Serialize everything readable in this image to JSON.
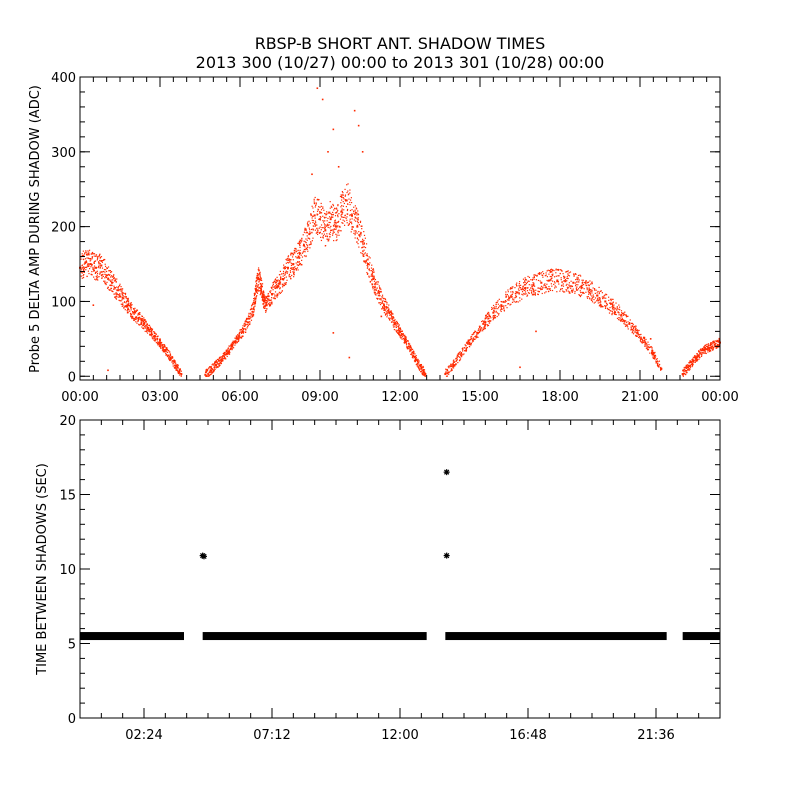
{
  "header": {
    "title": "RBSP-B SHORT ANT. SHADOW TIMES",
    "subtitle": "2013 300 (10/27) 00:00 to 2013 301 (10/28) 00:00"
  },
  "colors": {
    "top_points": "#ff2a00",
    "bottom_points": "#000000",
    "axis": "#000000"
  },
  "chart_data": [
    {
      "type": "scatter",
      "ylabel": "Probe 5 DELTA AMP DURING SHADOW (ADC)",
      "xlabel": "",
      "x_unit": "hours since 00:00",
      "xlim": [
        0,
        24
      ],
      "ylim": [
        -5,
        400
      ],
      "x_ticks": [
        {
          "value": 0,
          "label": "00:00"
        },
        {
          "value": 3,
          "label": "03:00"
        },
        {
          "value": 6,
          "label": "06:00"
        },
        {
          "value": 9,
          "label": "09:00"
        },
        {
          "value": 12,
          "label": "12:00"
        },
        {
          "value": 15,
          "label": "15:00"
        },
        {
          "value": 18,
          "label": "18:00"
        },
        {
          "value": 21,
          "label": "21:00"
        },
        {
          "value": 24,
          "label": "00:00"
        }
      ],
      "y_ticks": [
        {
          "value": 0,
          "label": "0"
        },
        {
          "value": 100,
          "label": "100"
        },
        {
          "value": 200,
          "label": "200"
        },
        {
          "value": 300,
          "label": "300"
        },
        {
          "value": 400,
          "label": "400"
        }
      ],
      "series": [
        {
          "color": "#ff2a00",
          "points": [
            [
              0.0,
              145
            ],
            [
              0.2,
              152
            ],
            [
              0.4,
              150
            ],
            [
              0.6,
              145
            ],
            [
              0.8,
              148
            ],
            [
              1.0,
              135
            ],
            [
              1.2,
              125
            ],
            [
              1.4,
              115
            ],
            [
              1.6,
              105
            ],
            [
              1.8,
              95
            ],
            [
              2.0,
              85
            ],
            [
              2.2,
              78
            ],
            [
              2.4,
              70
            ],
            [
              2.6,
              62
            ],
            [
              2.8,
              53
            ],
            [
              3.0,
              45
            ],
            [
              3.2,
              35
            ],
            [
              3.4,
              25
            ],
            [
              3.6,
              14
            ],
            [
              3.8,
              3
            ],
            [
              4.7,
              2
            ],
            [
              4.9,
              8
            ],
            [
              5.1,
              15
            ],
            [
              5.3,
              22
            ],
            [
              5.5,
              30
            ],
            [
              5.7,
              40
            ],
            [
              5.9,
              50
            ],
            [
              6.1,
              60
            ],
            [
              6.3,
              72
            ],
            [
              6.5,
              90
            ],
            [
              6.6,
              115
            ],
            [
              6.7,
              130
            ],
            [
              6.8,
              120
            ],
            [
              6.9,
              100
            ],
            [
              7.0,
              95
            ],
            [
              7.2,
              110
            ],
            [
              7.4,
              120
            ],
            [
              7.6,
              130
            ],
            [
              7.8,
              145
            ],
            [
              8.0,
              150
            ],
            [
              8.2,
              160
            ],
            [
              8.4,
              175
            ],
            [
              8.6,
              190
            ],
            [
              8.8,
              215
            ],
            [
              9.0,
              210
            ],
            [
              9.2,
              195
            ],
            [
              9.4,
              210
            ],
            [
              9.6,
              200
            ],
            [
              9.8,
              220
            ],
            [
              10.0,
              235
            ],
            [
              10.2,
              215
            ],
            [
              10.4,
              200
            ],
            [
              10.6,
              180
            ],
            [
              10.8,
              150
            ],
            [
              11.0,
              130
            ],
            [
              11.2,
              112
            ],
            [
              11.4,
              95
            ],
            [
              11.6,
              85
            ],
            [
              11.8,
              70
            ],
            [
              12.0,
              60
            ],
            [
              12.2,
              48
            ],
            [
              12.4,
              35
            ],
            [
              12.6,
              22
            ],
            [
              12.8,
              10
            ],
            [
              12.95,
              3
            ],
            [
              13.7,
              3
            ],
            [
              14.0,
              15
            ],
            [
              14.3,
              30
            ],
            [
              14.6,
              45
            ],
            [
              14.9,
              58
            ],
            [
              15.2,
              72
            ],
            [
              15.5,
              85
            ],
            [
              15.8,
              95
            ],
            [
              16.1,
              105
            ],
            [
              16.4,
              112
            ],
            [
              16.7,
              118
            ],
            [
              17.0,
              122
            ],
            [
              17.3,
              125
            ],
            [
              17.6,
              128
            ],
            [
              17.9,
              128
            ],
            [
              18.2,
              127
            ],
            [
              18.5,
              125
            ],
            [
              18.8,
              120
            ],
            [
              19.1,
              115
            ],
            [
              19.4,
              108
            ],
            [
              19.7,
              100
            ],
            [
              20.0,
              92
            ],
            [
              20.3,
              82
            ],
            [
              20.6,
              70
            ],
            [
              20.9,
              58
            ],
            [
              21.2,
              45
            ],
            [
              21.5,
              30
            ],
            [
              21.8,
              10
            ],
            [
              22.6,
              3
            ],
            [
              22.8,
              12
            ],
            [
              23.0,
              20
            ],
            [
              23.2,
              28
            ],
            [
              23.4,
              35
            ],
            [
              23.6,
              38
            ],
            [
              23.8,
              42
            ],
            [
              24.0,
              45
            ]
          ],
          "outliers": [
            [
              8.9,
              385
            ],
            [
              9.1,
              370
            ],
            [
              9.5,
              330
            ],
            [
              10.3,
              355
            ],
            [
              10.45,
              335
            ],
            [
              10.6,
              300
            ],
            [
              9.7,
              280
            ],
            [
              9.3,
              300
            ],
            [
              8.7,
              270
            ],
            [
              0.5,
              95
            ],
            [
              1.05,
              8
            ],
            [
              9.5,
              58
            ],
            [
              10.1,
              25
            ],
            [
              11.3,
              80
            ],
            [
              17.1,
              60
            ],
            [
              21.4,
              50
            ],
            [
              16.5,
              12
            ]
          ]
        }
      ]
    },
    {
      "type": "scatter",
      "ylabel": "TIME BETWEEN SHADOWS (SEC)",
      "xlabel": "",
      "x_unit": "hours since 00:00",
      "xlim": [
        0,
        24
      ],
      "ylim": [
        0,
        20
      ],
      "x_ticks": [
        {
          "value": 2.4,
          "label": "02:24"
        },
        {
          "value": 7.2,
          "label": "07:12"
        },
        {
          "value": 12.0,
          "label": "12:00"
        },
        {
          "value": 16.8,
          "label": "16:48"
        },
        {
          "value": 21.6,
          "label": "21:36"
        }
      ],
      "y_ticks": [
        {
          "value": 0,
          "label": "0"
        },
        {
          "value": 5,
          "label": "5"
        },
        {
          "value": 10,
          "label": "10"
        },
        {
          "value": 15,
          "label": "15"
        },
        {
          "value": 20,
          "label": "20"
        }
      ],
      "series": [
        {
          "color": "#000000",
          "baseline_value": 5.5,
          "baseline_ranges": [
            [
              0.0,
              3.9
            ],
            [
              4.6,
              13.0
            ],
            [
              13.7,
              22.0
            ],
            [
              22.6,
              24.0
            ]
          ],
          "points": [
            [
              4.6,
              10.9
            ],
            [
              4.65,
              10.85
            ],
            [
              13.75,
              16.5
            ],
            [
              13.75,
              10.9
            ]
          ]
        }
      ]
    }
  ]
}
